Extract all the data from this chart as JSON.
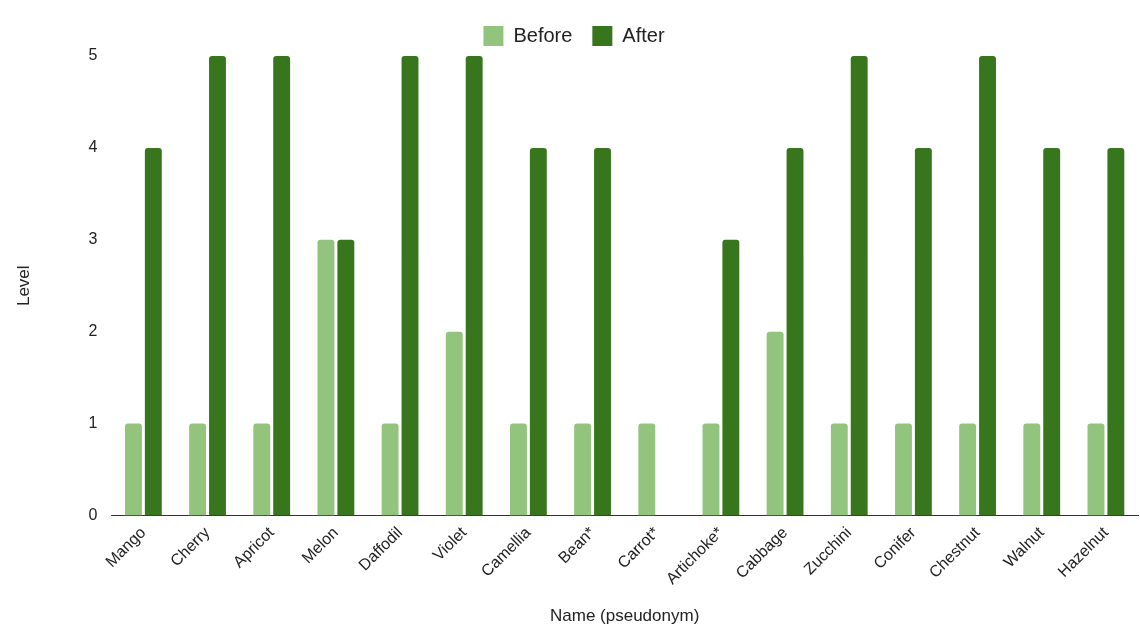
{
  "chart_data": {
    "type": "bar",
    "xlabel": "Name (pseudonym)",
    "ylabel": "Level",
    "categories": [
      "Mango",
      "Cherry",
      "Apricot",
      "Melon",
      "Daffodil",
      "Violet",
      "Camellia",
      "Bean*",
      "Carrot*",
      "Artichoke*",
      "Cabbage",
      "Zucchini",
      "Conifer",
      "Chestnut",
      "Walnut",
      "Hazelnut"
    ],
    "series": [
      {
        "name": "Before",
        "color": "#93c47d",
        "values": [
          1,
          1,
          1,
          3,
          1,
          2,
          1,
          1,
          1,
          1,
          2,
          1,
          1,
          1,
          1,
          1
        ]
      },
      {
        "name": "After",
        "color": "#38761d",
        "values": [
          4,
          5,
          5,
          3,
          5,
          5,
          4,
          4,
          0,
          3,
          4,
          5,
          4,
          5,
          4,
          4
        ]
      }
    ],
    "ylim": [
      0,
      5
    ],
    "yticks": [
      0,
      1,
      2,
      3,
      4,
      5
    ],
    "grid": false,
    "legend": "top"
  }
}
